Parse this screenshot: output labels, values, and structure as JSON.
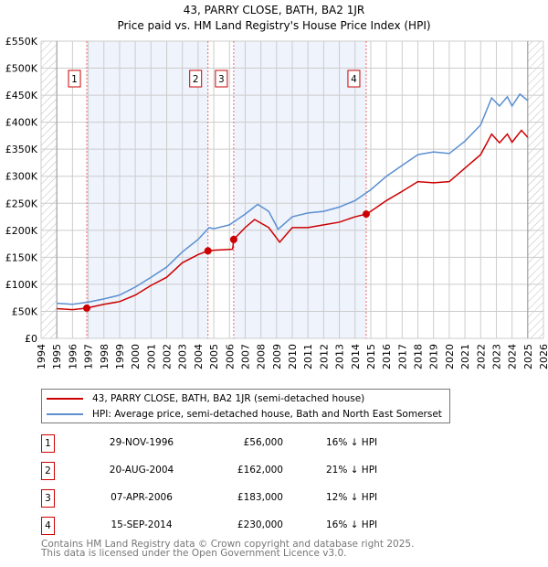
{
  "chart_data": {
    "type": "line",
    "title": "43, PARRY CLOSE, BATH, BA2 1JR",
    "subtitle": "Price paid vs. HM Land Registry's House Price Index (HPI)",
    "xlim": [
      1994,
      2026
    ],
    "ylim": [
      0,
      550000
    ],
    "x_ticks": [
      "1994",
      "1995",
      "1996",
      "1997",
      "1998",
      "1999",
      "2000",
      "2001",
      "2002",
      "2003",
      "2004",
      "2005",
      "2006",
      "2007",
      "2008",
      "2009",
      "2010",
      "2011",
      "2012",
      "2013",
      "2014",
      "2015",
      "2016",
      "2017",
      "2018",
      "2019",
      "2020",
      "2021",
      "2022",
      "2023",
      "2024",
      "2025",
      "2026"
    ],
    "y_ticks": [
      {
        "v": 0,
        "l": "£0"
      },
      {
        "v": 50000,
        "l": "£50K"
      },
      {
        "v": 100000,
        "l": "£100K"
      },
      {
        "v": 150000,
        "l": "£150K"
      },
      {
        "v": 200000,
        "l": "£200K"
      },
      {
        "v": 250000,
        "l": "£250K"
      },
      {
        "v": 300000,
        "l": "£300K"
      },
      {
        "v": 350000,
        "l": "£350K"
      },
      {
        "v": 400000,
        "l": "£400K"
      },
      {
        "v": 450000,
        "l": "£450K"
      },
      {
        "v": 500000,
        "l": "£500K"
      },
      {
        "v": 550000,
        "l": "£550K"
      }
    ],
    "grid": true,
    "series": [
      {
        "name": "43, PARRY CLOSE, BATH, BA2 1JR (semi-detached house)",
        "color": "#cc0000",
        "points": [
          [
            1995,
            55000
          ],
          [
            1996,
            53000
          ],
          [
            1996.91,
            56000
          ],
          [
            1998,
            63000
          ],
          [
            1999,
            68000
          ],
          [
            2000,
            80000
          ],
          [
            2001,
            98000
          ],
          [
            2002,
            113000
          ],
          [
            2003,
            140000
          ],
          [
            2004,
            155000
          ],
          [
            2004.63,
            162000
          ],
          [
            2005,
            163000
          ],
          [
            2006.2,
            165000
          ],
          [
            2006.27,
            183000
          ],
          [
            2007,
            205000
          ],
          [
            2007.6,
            220000
          ],
          [
            2008.5,
            205000
          ],
          [
            2009.2,
            178000
          ],
          [
            2010,
            205000
          ],
          [
            2011,
            205000
          ],
          [
            2012,
            210000
          ],
          [
            2013,
            215000
          ],
          [
            2014,
            225000
          ],
          [
            2014.71,
            230000
          ],
          [
            2015,
            235000
          ],
          [
            2016,
            255000
          ],
          [
            2017,
            272000
          ],
          [
            2018,
            290000
          ],
          [
            2019,
            288000
          ],
          [
            2020,
            290000
          ],
          [
            2021,
            315000
          ],
          [
            2022,
            340000
          ],
          [
            2022.7,
            378000
          ],
          [
            2023.2,
            362000
          ],
          [
            2023.7,
            378000
          ],
          [
            2024,
            363000
          ],
          [
            2024.6,
            385000
          ],
          [
            2025,
            372000
          ]
        ]
      },
      {
        "name": "HPI: Average price, semi-detached house, Bath and North East Somerset",
        "color": "#5b8fd0",
        "points": [
          [
            1995,
            65000
          ],
          [
            1996,
            63000
          ],
          [
            1997,
            67000
          ],
          [
            1998,
            73000
          ],
          [
            1999,
            80000
          ],
          [
            2000,
            95000
          ],
          [
            2001,
            113000
          ],
          [
            2002,
            132000
          ],
          [
            2003,
            160000
          ],
          [
            2004,
            183000
          ],
          [
            2004.7,
            205000
          ],
          [
            2005,
            203000
          ],
          [
            2006,
            210000
          ],
          [
            2007,
            230000
          ],
          [
            2007.8,
            248000
          ],
          [
            2008.5,
            235000
          ],
          [
            2009.1,
            202000
          ],
          [
            2010,
            225000
          ],
          [
            2011,
            232000
          ],
          [
            2012,
            235000
          ],
          [
            2013,
            243000
          ],
          [
            2014,
            255000
          ],
          [
            2015,
            275000
          ],
          [
            2016,
            300000
          ],
          [
            2017,
            320000
          ],
          [
            2018,
            340000
          ],
          [
            2019,
            345000
          ],
          [
            2020,
            342000
          ],
          [
            2021,
            365000
          ],
          [
            2022,
            395000
          ],
          [
            2022.7,
            445000
          ],
          [
            2023.2,
            430000
          ],
          [
            2023.7,
            447000
          ],
          [
            2024,
            430000
          ],
          [
            2024.5,
            452000
          ],
          [
            2025,
            440000
          ]
        ]
      }
    ],
    "sales": [
      {
        "n": "1",
        "x": 1996.91,
        "price": 56000
      },
      {
        "n": "2",
        "x": 2004.63,
        "price": 162000
      },
      {
        "n": "3",
        "x": 2006.27,
        "price": 183000
      },
      {
        "n": "4",
        "x": 2014.71,
        "price": 230000
      }
    ]
  },
  "table": [
    {
      "n": "1",
      "date": "29-NOV-1996",
      "price": "£56,000",
      "hpi": "16% ↓ HPI"
    },
    {
      "n": "2",
      "date": "20-AUG-2004",
      "price": "£162,000",
      "hpi": "21% ↓ HPI"
    },
    {
      "n": "3",
      "date": "07-APR-2006",
      "price": "£183,000",
      "hpi": "12% ↓ HPI"
    },
    {
      "n": "4",
      "date": "15-SEP-2014",
      "price": "£230,000",
      "hpi": "16% ↓ HPI"
    }
  ],
  "footer": {
    "line1": "Contains HM Land Registry data © Crown copyright and database right 2025.",
    "line2": "This data is licensed under the Open Government Licence v3.0."
  }
}
